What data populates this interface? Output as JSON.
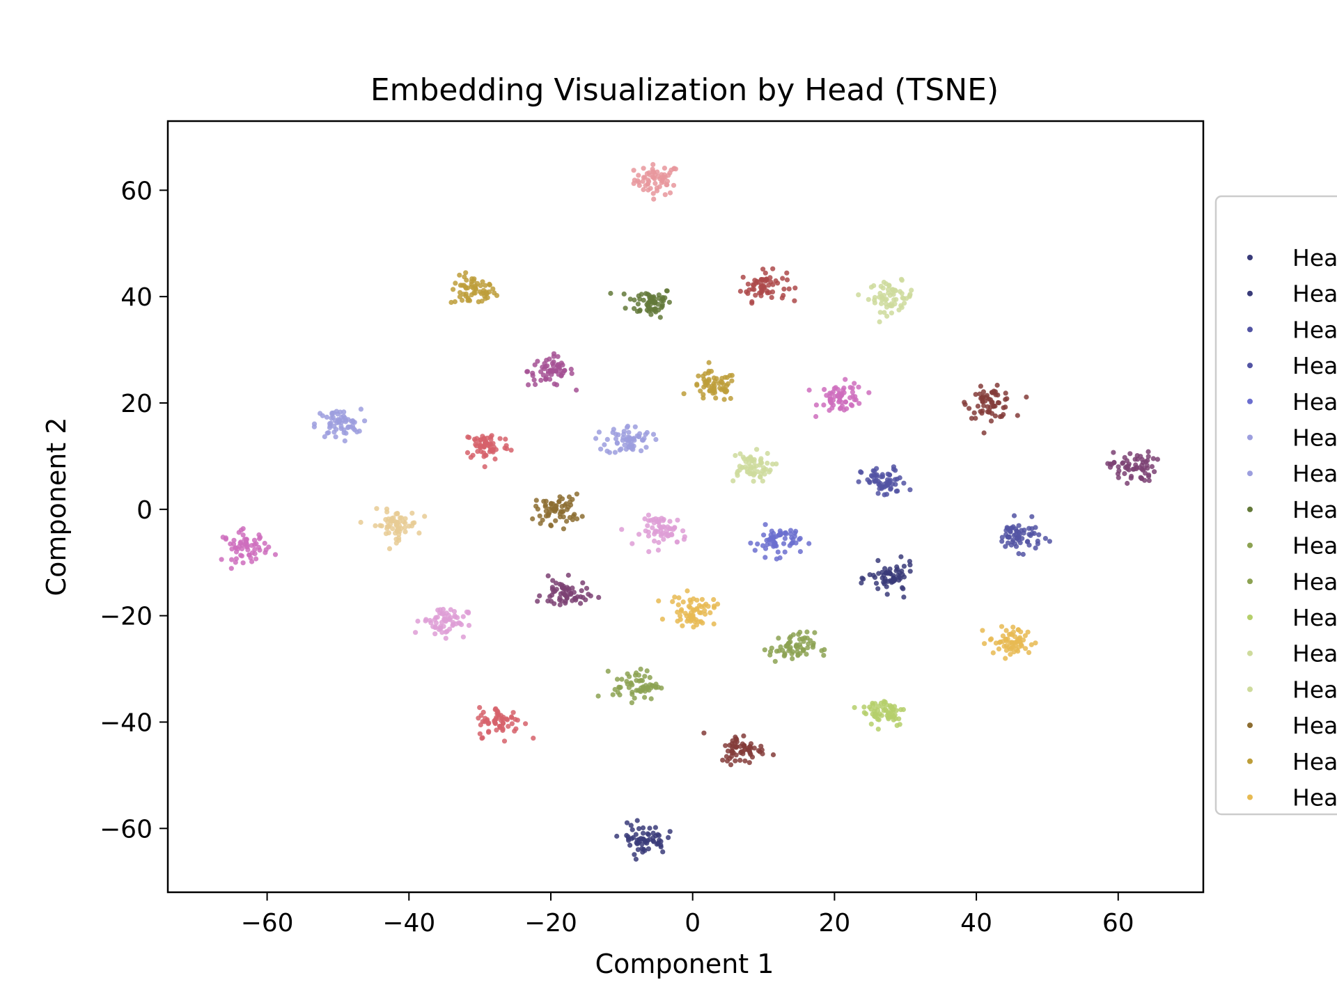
{
  "chart_data": {
    "type": "scatter",
    "title": "Embedding Visualization by Head (TSNE)",
    "xlabel": "Component 1",
    "ylabel": "Component 2",
    "xlim": [
      -74,
      72
    ],
    "ylim": [
      -72,
      73
    ],
    "xticks": [
      -60,
      -40,
      -20,
      0,
      20,
      40,
      60
    ],
    "yticks": [
      -60,
      -40,
      -20,
      0,
      20,
      40,
      60
    ],
    "xtick_labels": [
      "−60",
      "−40",
      "−20",
      "0",
      "20",
      "40",
      "60"
    ],
    "ytick_labels": [
      "−60",
      "−40",
      "−20",
      "0",
      "20",
      "40",
      "60"
    ],
    "grid": false,
    "legend_position": "right, partially clipped",
    "legend_entries": [
      {
        "label": "Hea",
        "color": "#393b79"
      },
      {
        "label": "Hea",
        "color": "#393b79"
      },
      {
        "label": "Hea",
        "color": "#5254a3"
      },
      {
        "label": "Hea",
        "color": "#5254a3"
      },
      {
        "label": "Hea",
        "color": "#6b6ecf"
      },
      {
        "label": "Hea",
        "color": "#9c9ede"
      },
      {
        "label": "Hea",
        "color": "#9c9ede"
      },
      {
        "label": "Hea",
        "color": "#637939"
      },
      {
        "label": "Hea",
        "color": "#8ca252"
      },
      {
        "label": "Hea",
        "color": "#8ca252"
      },
      {
        "label": "Hea",
        "color": "#b5cf6b"
      },
      {
        "label": "Hea",
        "color": "#cedb9c"
      },
      {
        "label": "Hea",
        "color": "#cedb9c"
      },
      {
        "label": "Hea",
        "color": "#8c6d31"
      },
      {
        "label": "Hea",
        "color": "#bd9e39"
      },
      {
        "label": "Hea",
        "color": "#e7ba52"
      }
    ],
    "clusters": [
      {
        "center": [
          -5,
          62
        ],
        "color": "#e7969c"
      },
      {
        "center": [
          -31,
          41
        ],
        "color": "#bd9e39"
      },
      {
        "center": [
          -6,
          39
        ],
        "color": "#637939"
      },
      {
        "center": [
          10,
          42
        ],
        "color": "#ad494a"
      },
      {
        "center": [
          28,
          40
        ],
        "color": "#cedb9c"
      },
      {
        "center": [
          -20,
          26
        ],
        "color": "#a55194"
      },
      {
        "center": [
          3,
          23
        ],
        "color": "#bd9e39"
      },
      {
        "center": [
          21,
          21
        ],
        "color": "#ce6dbd"
      },
      {
        "center": [
          42,
          20
        ],
        "color": "#843c39"
      },
      {
        "center": [
          -50,
          16
        ],
        "color": "#9c9ede"
      },
      {
        "center": [
          -29,
          12
        ],
        "color": "#d6616b"
      },
      {
        "center": [
          -9,
          13
        ],
        "color": "#9c9ede"
      },
      {
        "center": [
          8,
          8
        ],
        "color": "#cedb9c"
      },
      {
        "center": [
          62,
          8
        ],
        "color": "#7b4173"
      },
      {
        "center": [
          27,
          5
        ],
        "color": "#5254a3"
      },
      {
        "center": [
          -19,
          0
        ],
        "color": "#8c6d31"
      },
      {
        "center": [
          -42,
          -3
        ],
        "color": "#e7cb94"
      },
      {
        "center": [
          -4,
          -4
        ],
        "color": "#de9ed6"
      },
      {
        "center": [
          -63,
          -7
        ],
        "color": "#ce6dbd"
      },
      {
        "center": [
          12,
          -6
        ],
        "color": "#6b6ecf"
      },
      {
        "center": [
          46,
          -5
        ],
        "color": "#5254a3"
      },
      {
        "center": [
          28,
          -13
        ],
        "color": "#393b79"
      },
      {
        "center": [
          -18,
          -16
        ],
        "color": "#7b4173"
      },
      {
        "center": [
          0,
          -19
        ],
        "color": "#e7ba52"
      },
      {
        "center": [
          -35,
          -21
        ],
        "color": "#de9ed6"
      },
      {
        "center": [
          14,
          -26
        ],
        "color": "#8ca252"
      },
      {
        "center": [
          45,
          -25
        ],
        "color": "#e7ba52"
      },
      {
        "center": [
          -8,
          -33
        ],
        "color": "#8ca252"
      },
      {
        "center": [
          27,
          -38
        ],
        "color": "#b5cf6b"
      },
      {
        "center": [
          -27,
          -40
        ],
        "color": "#d6616b"
      },
      {
        "center": [
          7,
          -45
        ],
        "color": "#843c39"
      },
      {
        "center": [
          -7,
          -62
        ],
        "color": "#393b79"
      }
    ],
    "points_per_cluster": 60
  }
}
